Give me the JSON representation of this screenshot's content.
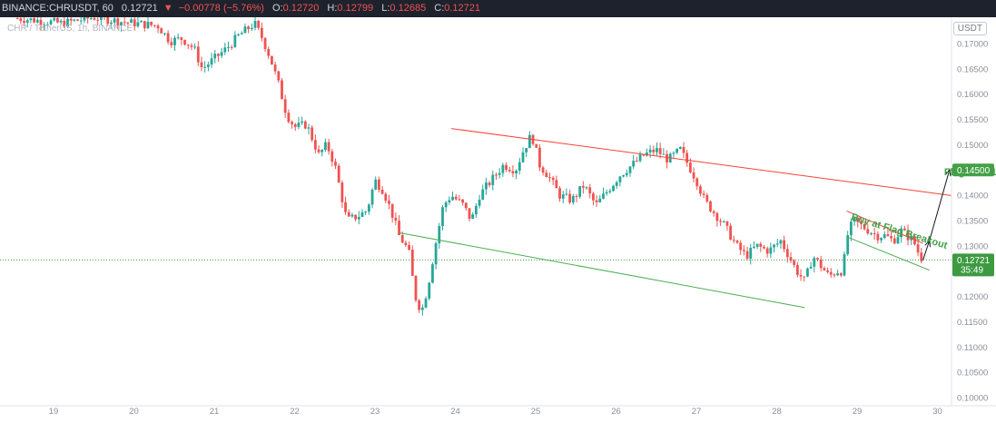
{
  "header": {
    "symbol": "BINANCE:CHRUSDT, 60",
    "last": "0.12721",
    "arrow": "▼",
    "change": "−0.00778 (−5.76%)",
    "open_label": "O:",
    "open": "0.12720",
    "high_label": "H:",
    "high": "0.12799",
    "low_label": "L:",
    "low": "0.12685",
    "close_label": "C:",
    "close": "0.12721"
  },
  "watermark": "CHR / TetherUS, 1h, BINANCE",
  "currency_badge": "USDT",
  "colors": {
    "up": "#26a69a",
    "down": "#ef5350",
    "upper_trendline": "#f44336",
    "lower_trendline": "#4caf50",
    "target": "#43a047",
    "arrow": "#131722",
    "price_tag": "#3d9a40"
  },
  "chart_data": {
    "type": "candlestick",
    "title": "CHR / TetherUS, 1h, BINANCE",
    "xlabel": "",
    "ylabel": "",
    "x_ticks": [
      "19",
      "20",
      "21",
      "22",
      "23",
      "24",
      "25",
      "26",
      "27",
      "28",
      "29",
      "30"
    ],
    "y_ticks": [
      "0.17000",
      "0.16500",
      "0.16000",
      "0.15500",
      "0.15000",
      "0.14500",
      "0.14000",
      "0.13500",
      "0.13000",
      "0.12500",
      "0.12000",
      "0.11500",
      "0.11000",
      "0.10500",
      "0.10000"
    ],
    "y_tick_values": [
      0.17,
      0.165,
      0.16,
      0.155,
      0.15,
      0.145,
      0.14,
      0.135,
      0.13,
      0.125,
      0.12,
      0.115,
      0.11,
      0.105,
      0.1
    ],
    "ylim": [
      0.0995,
      0.1745
    ],
    "xlim": [
      18.45,
      30.35
    ],
    "series_path": [
      [
        18.55,
        0.175
      ],
      [
        18.85,
        0.1745
      ],
      [
        19.1,
        0.174
      ],
      [
        19.5,
        0.1752
      ],
      [
        19.9,
        0.1742
      ],
      [
        20.3,
        0.1735
      ],
      [
        20.45,
        0.1705
      ],
      [
        20.6,
        0.171
      ],
      [
        20.75,
        0.169
      ],
      [
        20.85,
        0.165
      ],
      [
        21.0,
        0.167
      ],
      [
        21.15,
        0.169
      ],
      [
        21.3,
        0.1715
      ],
      [
        21.5,
        0.174
      ],
      [
        21.6,
        0.171
      ],
      [
        21.7,
        0.167
      ],
      [
        21.8,
        0.162
      ],
      [
        21.9,
        0.156
      ],
      [
        22.0,
        0.1535
      ],
      [
        22.15,
        0.154
      ],
      [
        22.3,
        0.148
      ],
      [
        22.4,
        0.15
      ],
      [
        22.5,
        0.146
      ],
      [
        22.65,
        0.135
      ],
      [
        22.8,
        0.136
      ],
      [
        22.9,
        0.137
      ],
      [
        23.0,
        0.143
      ],
      [
        23.1,
        0.141
      ],
      [
        23.2,
        0.137
      ],
      [
        23.3,
        0.132
      ],
      [
        23.42,
        0.129
      ],
      [
        23.5,
        0.12
      ],
      [
        23.58,
        0.117
      ],
      [
        23.66,
        0.122
      ],
      [
        23.75,
        0.13
      ],
      [
        23.85,
        0.138
      ],
      [
        23.95,
        0.14
      ],
      [
        24.1,
        0.138
      ],
      [
        24.2,
        0.135
      ],
      [
        24.3,
        0.14
      ],
      [
        24.45,
        0.143
      ],
      [
        24.6,
        0.146
      ],
      [
        24.75,
        0.145
      ],
      [
        24.85,
        0.149
      ],
      [
        24.95,
        0.152
      ],
      [
        25.0,
        0.149
      ],
      [
        25.05,
        0.146
      ],
      [
        25.15,
        0.144
      ],
      [
        25.3,
        0.14
      ],
      [
        25.45,
        0.139
      ],
      [
        25.6,
        0.142
      ],
      [
        25.75,
        0.138
      ],
      [
        25.9,
        0.141
      ],
      [
        26.05,
        0.144
      ],
      [
        26.2,
        0.146
      ],
      [
        26.35,
        0.148
      ],
      [
        26.5,
        0.149
      ],
      [
        26.65,
        0.147
      ],
      [
        26.8,
        0.149
      ],
      [
        26.9,
        0.146
      ],
      [
        27.0,
        0.143
      ],
      [
        27.1,
        0.139
      ],
      [
        27.2,
        0.137
      ],
      [
        27.35,
        0.134
      ],
      [
        27.5,
        0.13
      ],
      [
        27.62,
        0.128
      ],
      [
        27.75,
        0.13
      ],
      [
        27.9,
        0.129
      ],
      [
        28.05,
        0.131
      ],
      [
        28.15,
        0.128
      ],
      [
        28.25,
        0.125
      ],
      [
        28.35,
        0.123
      ],
      [
        28.45,
        0.128
      ],
      [
        28.55,
        0.126
      ],
      [
        28.65,
        0.124
      ],
      [
        28.75,
        0.125
      ],
      [
        28.82,
        0.125
      ],
      [
        28.88,
        0.132
      ],
      [
        28.95,
        0.135
      ],
      [
        29.05,
        0.134
      ],
      [
        29.15,
        0.133
      ],
      [
        29.25,
        0.132
      ],
      [
        29.35,
        0.132
      ],
      [
        29.45,
        0.131
      ],
      [
        29.5,
        0.132
      ],
      [
        29.55,
        0.133
      ],
      [
        29.62,
        0.132
      ],
      [
        29.7,
        0.131
      ],
      [
        29.78,
        0.128
      ],
      [
        29.82,
        0.1272
      ]
    ],
    "last_price": 0.12721,
    "price_tag": "0.12721",
    "countdown": "35:49",
    "target_price": 0.145,
    "target_tag": "0.14500",
    "trendlines": [
      {
        "name": "upper",
        "points": [
          [
            23.95,
            0.1532
          ],
          [
            30.2,
            0.1399
          ]
        ]
      },
      {
        "name": "lower",
        "points": [
          [
            23.3,
            0.1326
          ],
          [
            28.35,
            0.1178
          ]
        ]
      },
      {
        "name": "flag-upper",
        "points": [
          [
            28.87,
            0.1369
          ],
          [
            29.82,
            0.1305
          ]
        ]
      },
      {
        "name": "flag-lower",
        "points": [
          [
            28.87,
            0.1318
          ],
          [
            29.9,
            0.1252
          ]
        ]
      }
    ],
    "projection_arrow": [
      [
        29.82,
        0.1272
      ],
      [
        29.9,
        0.131
      ],
      [
        30.15,
        0.145
      ]
    ],
    "annotations": [
      {
        "text": "Flag TP 0.145",
        "x": 29.88,
        "y": 0.1445
      },
      {
        "text": "Buy at Flag Breakout",
        "x": 28.92,
        "y": 0.1352
      }
    ]
  }
}
